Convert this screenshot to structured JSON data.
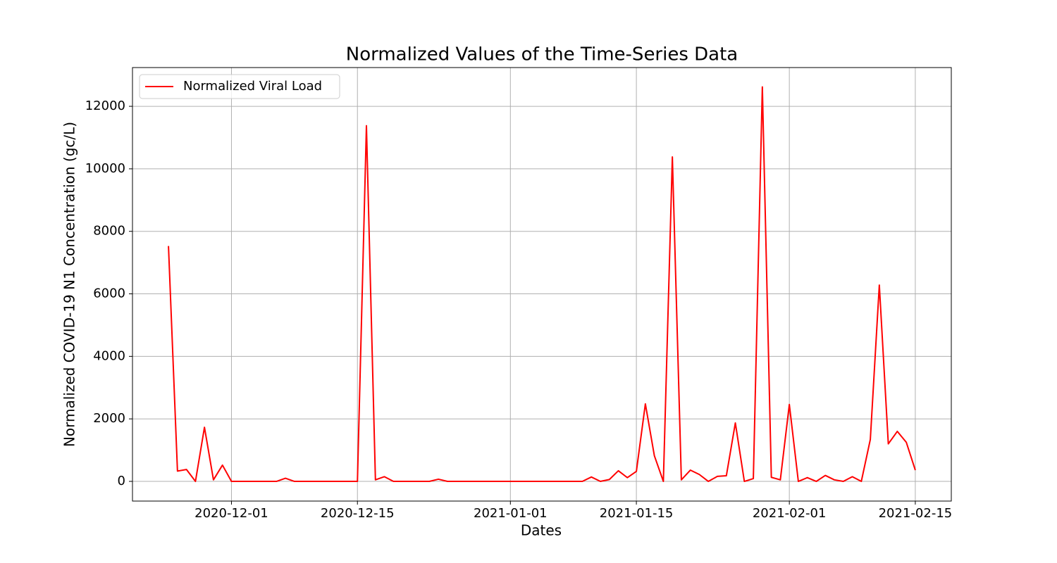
{
  "chart_data": {
    "type": "line",
    "title": "Normalized Values of the Time-Series Data",
    "x_label": "Dates",
    "y_label": "Normalized COVID-19 N1 Concentration (gc/L)",
    "x": [
      "2020-11-24",
      "2020-11-25",
      "2020-11-26",
      "2020-11-27",
      "2020-11-28",
      "2020-11-29",
      "2020-11-30",
      "2020-12-01",
      "2020-12-02",
      "2020-12-03",
      "2020-12-04",
      "2020-12-05",
      "2020-12-06",
      "2020-12-07",
      "2020-12-08",
      "2020-12-09",
      "2020-12-10",
      "2020-12-11",
      "2020-12-12",
      "2020-12-13",
      "2020-12-14",
      "2020-12-15",
      "2020-12-16",
      "2020-12-17",
      "2020-12-18",
      "2020-12-19",
      "2020-12-20",
      "2020-12-21",
      "2020-12-22",
      "2020-12-23",
      "2020-12-24",
      "2020-12-25",
      "2020-12-26",
      "2020-12-27",
      "2020-12-28",
      "2020-12-29",
      "2020-12-30",
      "2020-12-31",
      "2021-01-01",
      "2021-01-02",
      "2021-01-03",
      "2021-01-04",
      "2021-01-05",
      "2021-01-06",
      "2021-01-07",
      "2021-01-08",
      "2021-01-09",
      "2021-01-10",
      "2021-01-11",
      "2021-01-12",
      "2021-01-13",
      "2021-01-14",
      "2021-01-15",
      "2021-01-16",
      "2021-01-17",
      "2021-01-18",
      "2021-01-19",
      "2021-01-20",
      "2021-01-21",
      "2021-01-22",
      "2021-01-23",
      "2021-01-24",
      "2021-01-25",
      "2021-01-26",
      "2021-01-27",
      "2021-01-28",
      "2021-01-29",
      "2021-01-30",
      "2021-01-31",
      "2021-02-01",
      "2021-02-02",
      "2021-02-03",
      "2021-02-04",
      "2021-02-05",
      "2021-02-06",
      "2021-02-07",
      "2021-02-08",
      "2021-02-09",
      "2021-02-10",
      "2021-02-11",
      "2021-02-12",
      "2021-02-13",
      "2021-02-14",
      "2021-02-15"
    ],
    "series": [
      {
        "name": "Normalized Viral Load",
        "color": "#ff0000",
        "values": [
          7530,
          330,
          380,
          0,
          1730,
          50,
          520,
          0,
          0,
          0,
          0,
          0,
          0,
          100,
          0,
          0,
          0,
          0,
          0,
          0,
          0,
          0,
          11380,
          50,
          150,
          0,
          0,
          0,
          0,
          0,
          70,
          0,
          0,
          0,
          0,
          0,
          0,
          0,
          0,
          0,
          0,
          0,
          0,
          0,
          0,
          0,
          0,
          140,
          0,
          60,
          340,
          120,
          320,
          2480,
          820,
          0,
          10380,
          50,
          360,
          220,
          0,
          160,
          180,
          1870,
          0,
          90,
          12620,
          130,
          50,
          2460,
          0,
          120,
          0,
          190,
          50,
          0,
          150,
          0,
          1340,
          6280,
          1200,
          1600,
          1250,
          360
        ]
      }
    ],
    "xlim": [
      "2020-11-20",
      "2021-02-19"
    ],
    "xticks": [
      "2020-12-01",
      "2020-12-15",
      "2021-01-01",
      "2021-01-15",
      "2021-02-01",
      "2021-02-15"
    ],
    "ylim": [
      -630,
      13240
    ],
    "yticks": [
      0,
      2000,
      4000,
      6000,
      8000,
      10000,
      12000
    ],
    "grid": true,
    "legend": "upper left"
  }
}
